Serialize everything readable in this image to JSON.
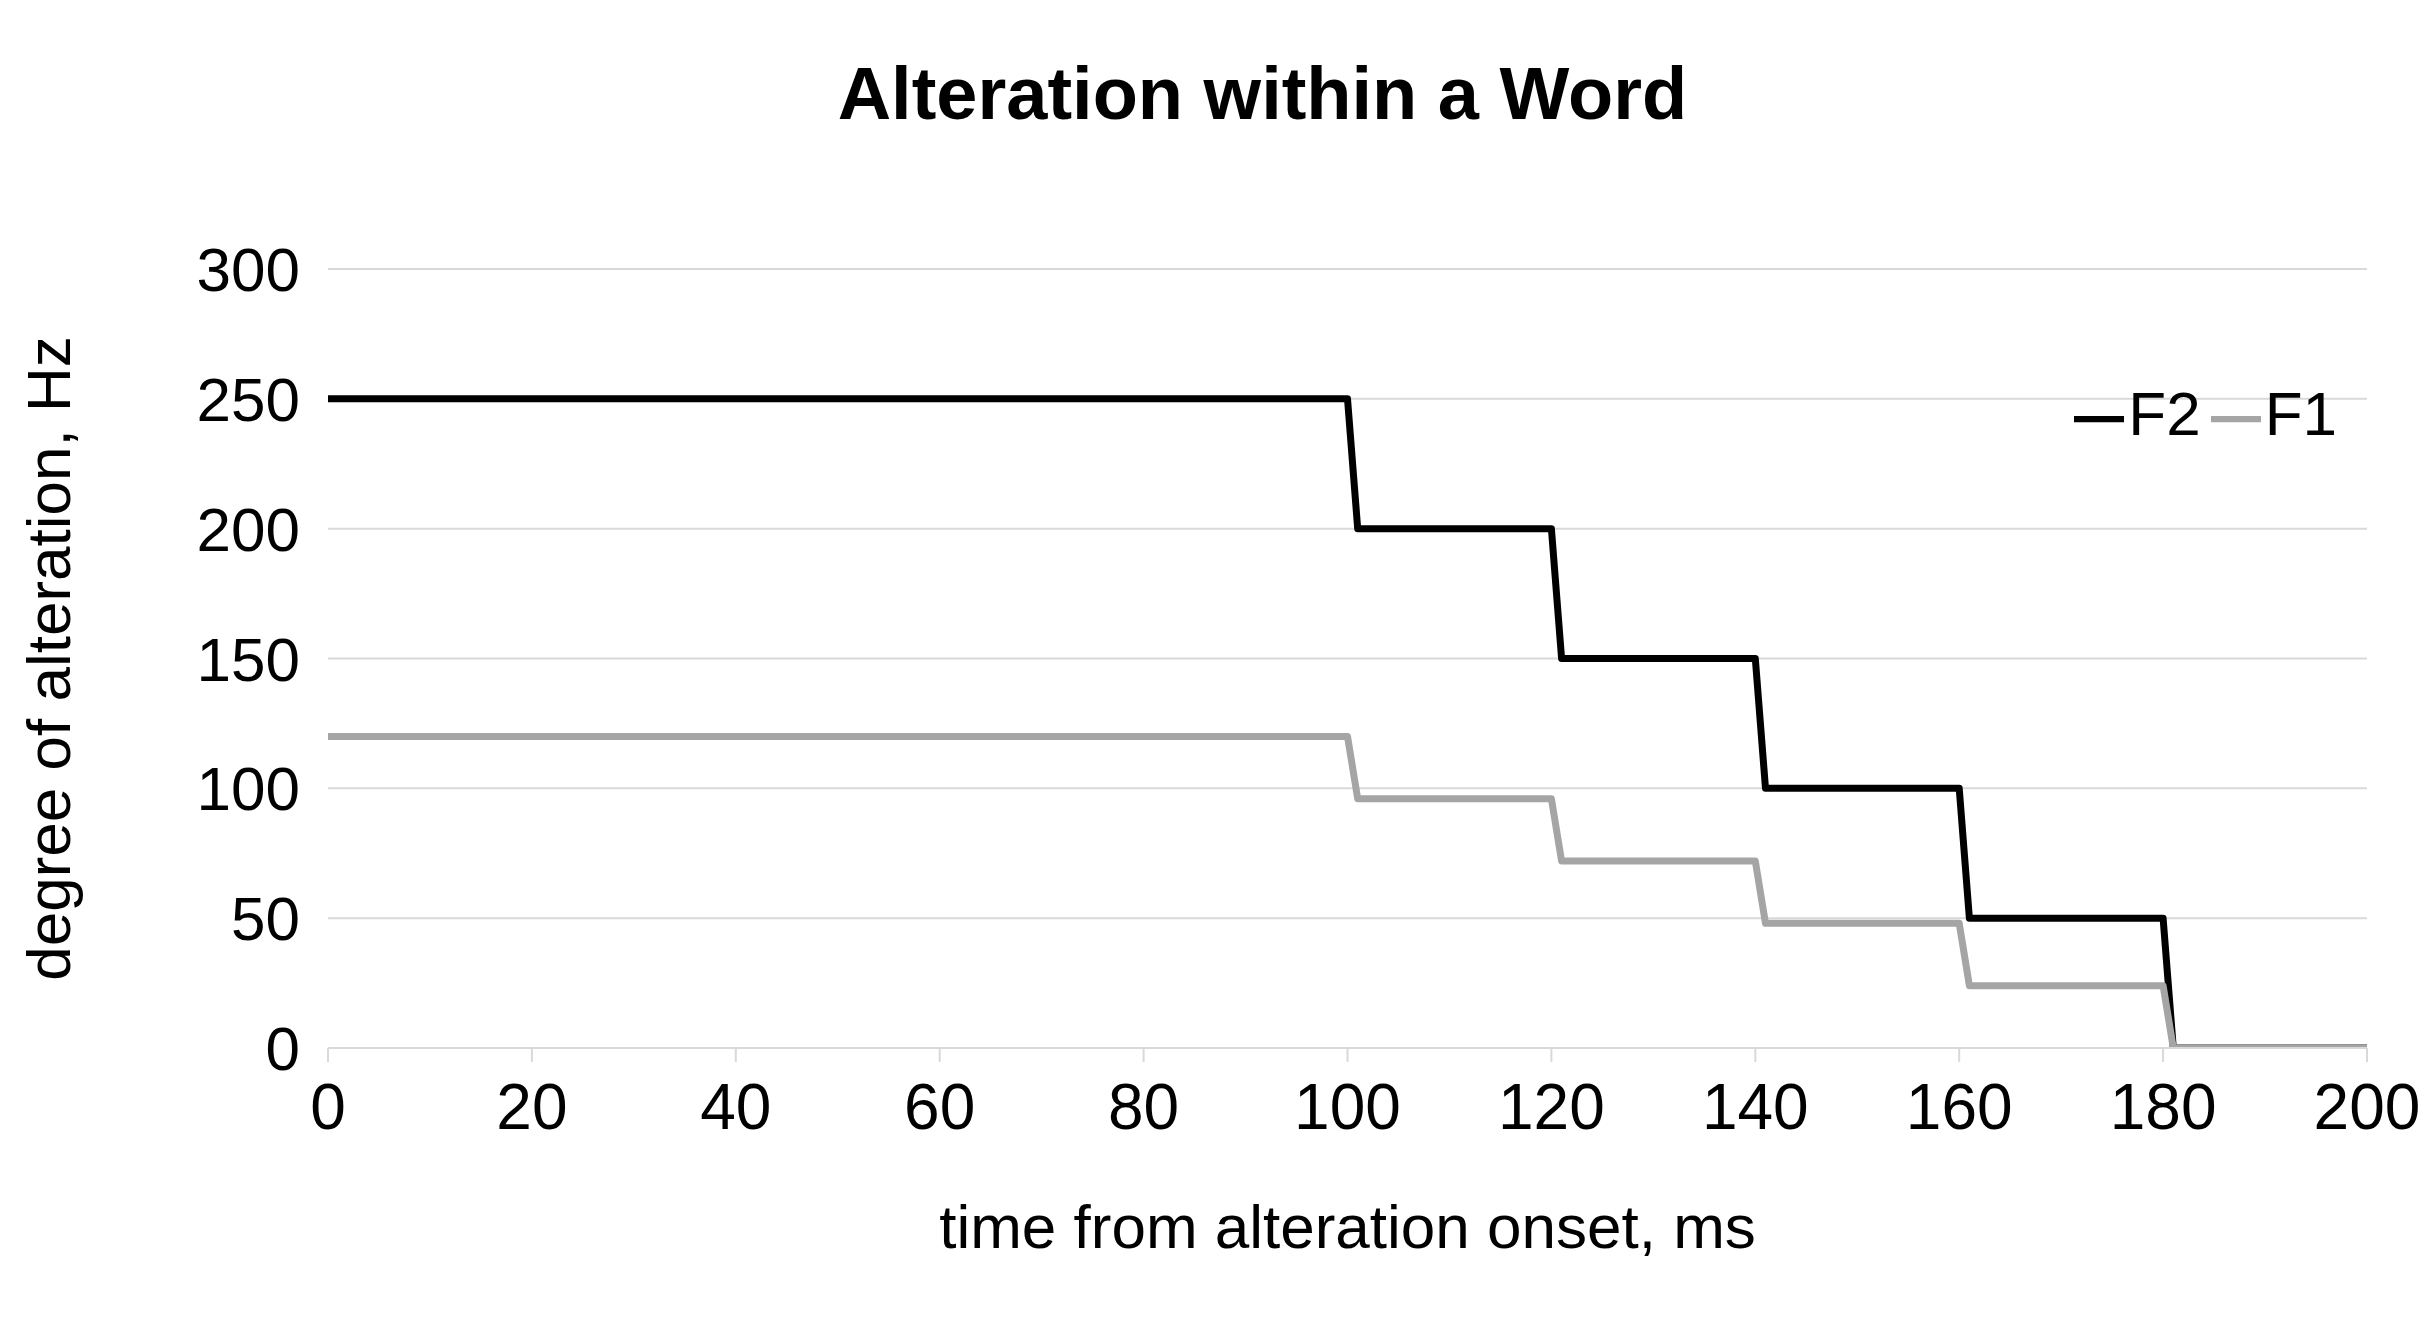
{
  "chart_data": {
    "type": "line",
    "title": "Alteration within a Word",
    "xlabel": "time from alteration onset, ms",
    "ylabel": "degree of alteration, Hz",
    "series": [
      {
        "name": "F2",
        "color": "#000000",
        "x": [
          0,
          100,
          101,
          120,
          121,
          140,
          141,
          160,
          161,
          180,
          181,
          200
        ],
        "values": [
          250,
          250,
          200,
          200,
          150,
          150,
          100,
          100,
          50,
          50,
          0,
          0
        ]
      },
      {
        "name": "F1",
        "color": "#a5a5a5",
        "x": [
          0,
          100,
          101,
          120,
          121,
          140,
          141,
          160,
          161,
          180,
          181,
          200
        ],
        "values": [
          120,
          120,
          96,
          96,
          72,
          72,
          48,
          48,
          24,
          24,
          0,
          0
        ]
      }
    ],
    "xlim": [
      0,
      200
    ],
    "xticks": [
      0,
      20,
      40,
      60,
      80,
      100,
      120,
      140,
      160,
      180,
      200
    ],
    "ylim": [
      0,
      300
    ],
    "yticks": [
      0,
      50,
      100,
      150,
      200,
      250,
      300
    ],
    "grid": "y",
    "legend": "top right",
    "marker": "none",
    "line_style": "solid"
  }
}
